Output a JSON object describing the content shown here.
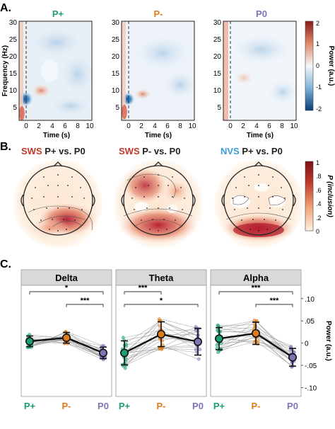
{
  "panels": {
    "a": "A.",
    "b": "B.",
    "c": "C."
  },
  "colors": {
    "p_plus": "#1a9e77",
    "p_minus": "#e07b1a",
    "p_zero": "#7b75b8",
    "sws": "#c0392b",
    "nvs": "#3a9bd8",
    "strip": "#d9d9d9",
    "neg": "#0b5fa5",
    "pos": "#b2182b"
  },
  "panel_a": {
    "titles": [
      "P+",
      "P-",
      "P0"
    ],
    "ylabel": "Frequency (Hz)",
    "xlabel": "Time (s)",
    "yticks": [
      "30",
      "25",
      "20",
      "15",
      "10",
      "5"
    ],
    "xticks": [
      "0",
      "2",
      "4",
      "6",
      "8",
      "10"
    ],
    "colorbar_label": "Power (a.u.)",
    "colorbar_ticks": [
      "2",
      "1",
      "0",
      "-1",
      "-2"
    ]
  },
  "panel_b": {
    "maps": [
      {
        "cond": "SWS",
        "cmp": "P+ vs. P0"
      },
      {
        "cond": "SWS",
        "cmp": "P- vs. P0"
      },
      {
        "cond": "NVS",
        "cmp": "P+ vs. P0"
      }
    ],
    "colorbar_label": "P (inclusion)",
    "colorbar_ticks": [
      "1",
      ".8",
      ".6",
      ".4",
      ".2",
      "0"
    ]
  },
  "chart_data": {
    "type": "scatter",
    "title": "",
    "ylabel": "Power (a.u.)",
    "ylim": [
      -0.12,
      0.13
    ],
    "yticks": [
      ".10",
      ".05",
      "0",
      "-.05",
      "-.10"
    ],
    "categories": [
      "P+",
      "P-",
      "P0"
    ],
    "facets": [
      {
        "name": "Delta",
        "means": [
          0.004,
          0.012,
          -0.022
        ],
        "err": [
          0.012,
          0.012,
          0.013
        ],
        "brackets": [
          {
            "from": 0,
            "to": 2,
            "label": "*"
          },
          {
            "from": 1,
            "to": 2,
            "label": "***"
          }
        ]
      },
      {
        "name": "Theta",
        "means": [
          -0.022,
          0.02,
          0.003
        ],
        "err": [
          0.027,
          0.028,
          0.03
        ],
        "brackets": [
          {
            "from": 0,
            "to": 1,
            "label": "***"
          },
          {
            "from": 0,
            "to": 2,
            "label": "*"
          }
        ]
      },
      {
        "name": "Alpha",
        "means": [
          0.01,
          0.022,
          -0.032
        ],
        "err": [
          0.025,
          0.025,
          0.02
        ],
        "brackets": [
          {
            "from": 0,
            "to": 2,
            "label": "***"
          },
          {
            "from": 1,
            "to": 2,
            "label": "***"
          }
        ]
      }
    ]
  }
}
